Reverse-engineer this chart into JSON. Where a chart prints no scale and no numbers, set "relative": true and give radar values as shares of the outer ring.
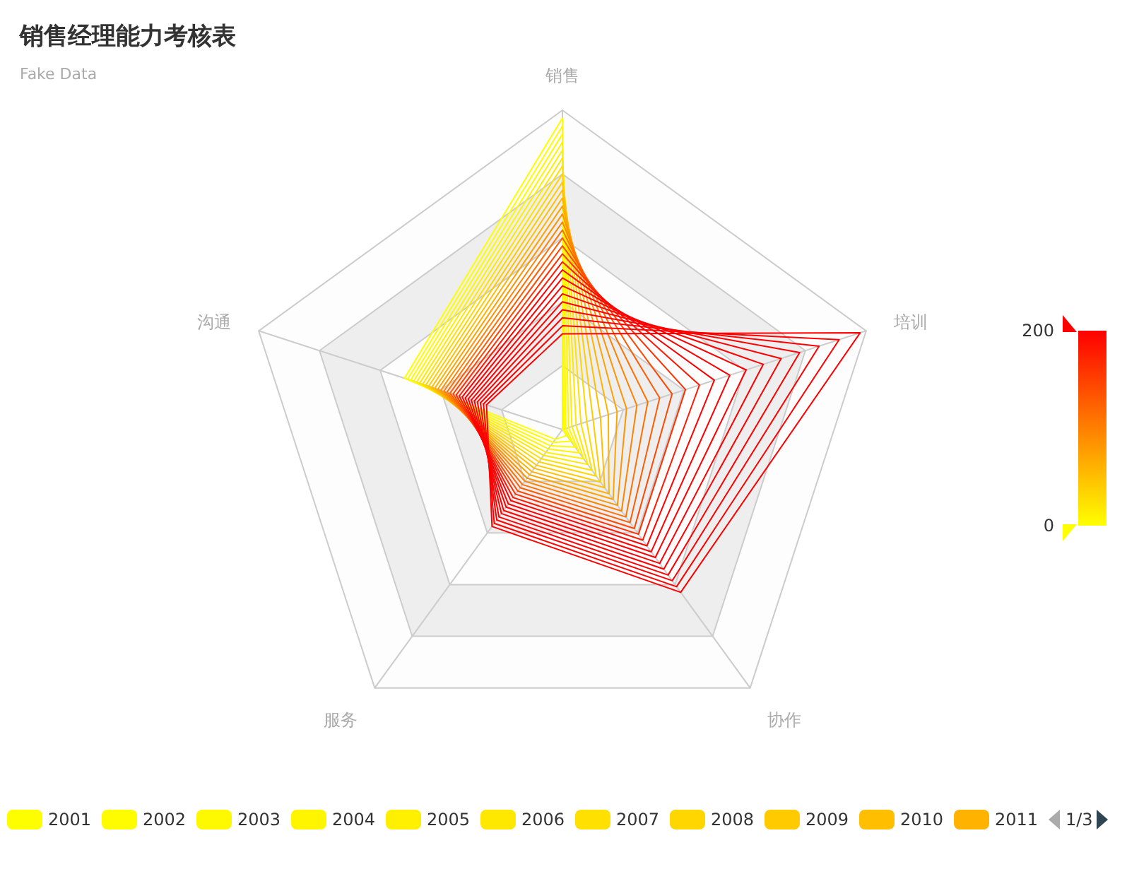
{
  "chart_data": {
    "type": "radar",
    "title": "销售经理能力考核表",
    "subtitle": "Fake Data",
    "categories": [
      "销售",
      "培训",
      "协作",
      "服务",
      "沟通"
    ],
    "relative": true,
    "grid": true,
    "legend": "bottom",
    "annotations": [
      "1/3",
      "200",
      "0"
    ],
    "series": [
      {
        "name": "2001",
        "color": "#fffe00",
        "values": [
          0.975,
          0.001,
          0.023,
          0.038,
          0.52
        ]
      },
      {
        "name": "2002",
        "color": "#fffc00",
        "values": [
          0.95,
          0.005,
          0.045,
          0.05,
          0.51
        ]
      },
      {
        "name": "2003",
        "color": "#fff900",
        "values": [
          0.925,
          0.011,
          0.068,
          0.063,
          0.5
        ]
      },
      {
        "name": "2004",
        "color": "#fff500",
        "values": [
          0.9,
          0.02,
          0.09,
          0.075,
          0.49
        ]
      },
      {
        "name": "2005",
        "color": "#ffef00",
        "values": [
          0.875,
          0.031,
          0.113,
          0.088,
          0.48
        ]
      },
      {
        "name": "2006",
        "color": "#ffe800",
        "values": [
          0.85,
          0.045,
          0.135,
          0.1,
          0.47
        ]
      },
      {
        "name": "2007",
        "color": "#ffe000",
        "values": [
          0.825,
          0.061,
          0.158,
          0.113,
          0.46
        ]
      },
      {
        "name": "2008",
        "color": "#ffd600",
        "values": [
          0.8,
          0.08,
          0.18,
          0.125,
          0.45
        ]
      },
      {
        "name": "2009",
        "color": "#ffcb00",
        "values": [
          0.775,
          0.101,
          0.203,
          0.138,
          0.44
        ]
      },
      {
        "name": "2010",
        "color": "#ffbf00",
        "values": [
          0.75,
          0.125,
          0.225,
          0.15,
          0.43
        ]
      },
      {
        "name": "2011",
        "color": "#ffb200",
        "values": [
          0.725,
          0.151,
          0.248,
          0.163,
          0.42
        ]
      },
      {
        "color": "#ffa300",
        "values": [
          0.7,
          0.18,
          0.27,
          0.175,
          0.41
        ]
      },
      {
        "color": "#ff9300",
        "values": [
          0.675,
          0.211,
          0.293,
          0.188,
          0.4
        ]
      },
      {
        "color": "#ff8200",
        "values": [
          0.65,
          0.245,
          0.315,
          0.2,
          0.39
        ]
      },
      {
        "color": "#ff7000",
        "values": [
          0.625,
          0.281,
          0.338,
          0.213,
          0.38
        ]
      },
      {
        "color": "#ff5c00",
        "values": [
          0.6,
          0.32,
          0.36,
          0.225,
          0.37
        ]
      },
      {
        "color": "#ff4700",
        "values": [
          0.575,
          0.361,
          0.383,
          0.238,
          0.36
        ]
      },
      {
        "color": "#ff3000",
        "values": [
          0.55,
          0.405,
          0.405,
          0.25,
          0.35
        ]
      },
      {
        "color": "#ff1900",
        "values": [
          0.525,
          0.451,
          0.428,
          0.263,
          0.34
        ]
      },
      {
        "color": "#ff0000",
        "values": [
          0.5,
          0.5,
          0.45,
          0.275,
          0.33
        ]
      },
      {
        "color": "#ff0000",
        "values": [
          0.475,
          0.551,
          0.473,
          0.288,
          0.32
        ]
      },
      {
        "color": "#ff0000",
        "values": [
          0.45,
          0.605,
          0.495,
          0.3,
          0.31
        ]
      },
      {
        "color": "#ff0000",
        "values": [
          0.425,
          0.661,
          0.518,
          0.313,
          0.3
        ]
      },
      {
        "color": "#ff0000",
        "values": [
          0.4,
          0.72,
          0.54,
          0.325,
          0.29
        ]
      },
      {
        "color": "#ff0000",
        "values": [
          0.375,
          0.781,
          0.563,
          0.338,
          0.28
        ]
      },
      {
        "color": "#ff0000",
        "values": [
          0.35,
          0.845,
          0.585,
          0.35,
          0.27
        ]
      },
      {
        "color": "#ff0000",
        "values": [
          0.325,
          0.911,
          0.608,
          0.363,
          0.26
        ]
      },
      {
        "color": "#ff0000",
        "values": [
          0.3,
          0.98,
          0.63,
          0.375,
          0.25
        ]
      }
    ]
  }
}
